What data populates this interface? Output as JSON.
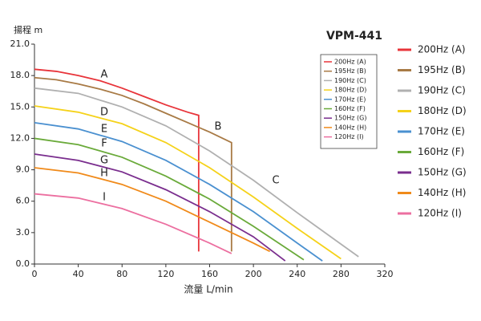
{
  "chart_data": {
    "type": "line",
    "title": "VPM-441",
    "y_label": "揚程 m",
    "x_label": "流量 L/min",
    "xlim": [
      0,
      320
    ],
    "xticks": [
      0,
      40,
      80,
      120,
      160,
      200,
      240,
      280,
      320
    ],
    "ylim": [
      0,
      21
    ],
    "yticks": [
      {
        "value": 0,
        "label": "0.0"
      },
      {
        "value": 3,
        "label": "3.0"
      },
      {
        "value": 6,
        "label": "6.0"
      },
      {
        "value": 9,
        "label": "9.0"
      },
      {
        "value": 12,
        "label": "12.0"
      },
      {
        "value": 15,
        "label": "15.0"
      },
      {
        "value": 18,
        "label": "18.0"
      },
      {
        "value": 21,
        "label": "21.0"
      }
    ],
    "grid": false,
    "legend": "right",
    "series": [
      {
        "name": "200Hz (A)",
        "label": "A",
        "color": "#e8343a",
        "x": [
          0,
          20,
          40,
          60,
          80,
          100,
          120,
          140,
          150,
          150
        ],
        "values": [
          18.6,
          18.4,
          18.0,
          17.5,
          16.8,
          16.0,
          15.2,
          14.5,
          14.2,
          1.2
        ]
      },
      {
        "name": "195Hz (B)",
        "label": "B",
        "color": "#a87a45",
        "x": [
          0,
          20,
          40,
          60,
          80,
          100,
          120,
          140,
          160,
          180,
          180
        ],
        "values": [
          17.8,
          17.6,
          17.2,
          16.7,
          16.1,
          15.3,
          14.4,
          13.5,
          12.6,
          11.6,
          1.2
        ]
      },
      {
        "name": "190Hz (C)",
        "label": "C",
        "color": "#b0b0b0",
        "x": [
          0,
          40,
          80,
          120,
          160,
          200,
          240,
          280,
          296
        ],
        "values": [
          16.8,
          16.3,
          15.0,
          13.2,
          10.8,
          8.0,
          4.9,
          1.9,
          0.7
        ]
      },
      {
        "name": "180Hz (D)",
        "label": "D",
        "color": "#f5d21a",
        "x": [
          0,
          40,
          80,
          120,
          160,
          200,
          240,
          280
        ],
        "values": [
          15.1,
          14.5,
          13.4,
          11.6,
          9.2,
          6.4,
          3.4,
          0.5
        ]
      },
      {
        "name": "170Hz (E)",
        "label": "E",
        "color": "#4a90d0",
        "x": [
          0,
          40,
          80,
          120,
          160,
          200,
          240,
          263
        ],
        "values": [
          13.5,
          12.9,
          11.7,
          9.9,
          7.6,
          5.0,
          2.0,
          0.3
        ]
      },
      {
        "name": "160Hz (F)",
        "label": "F",
        "color": "#6aaa3a",
        "x": [
          0,
          40,
          80,
          120,
          160,
          200,
          246
        ],
        "values": [
          12.0,
          11.4,
          10.2,
          8.4,
          6.2,
          3.6,
          0.4
        ]
      },
      {
        "name": "150Hz (G)",
        "label": "G",
        "color": "#7a2e8e",
        "x": [
          0,
          40,
          80,
          120,
          160,
          200,
          229
        ],
        "values": [
          10.5,
          9.9,
          8.8,
          7.1,
          5.0,
          2.6,
          0.3
        ]
      },
      {
        "name": "140Hz (H)",
        "label": "H",
        "color": "#f08a1a",
        "x": [
          0,
          40,
          80,
          120,
          160,
          200,
          215
        ],
        "values": [
          9.2,
          8.7,
          7.6,
          6.0,
          4.0,
          2.0,
          1.2
        ]
      },
      {
        "name": "120Hz (I)",
        "label": "I",
        "color": "#ec6fa0",
        "x": [
          0,
          40,
          80,
          120,
          160,
          180
        ],
        "values": [
          6.7,
          6.3,
          5.3,
          3.8,
          2.0,
          1.0
        ]
      }
    ]
  }
}
